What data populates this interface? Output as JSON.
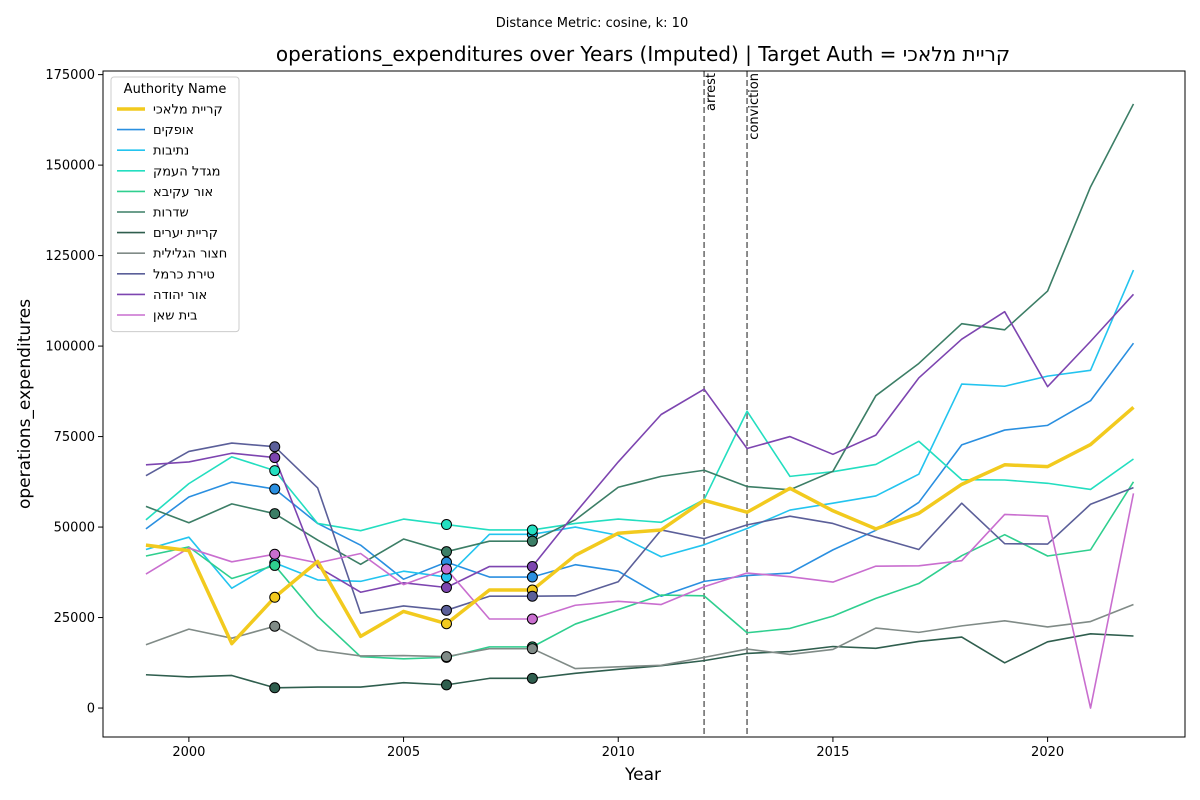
{
  "chart_data": {
    "type": "line",
    "suptitle": "Distance Metric: cosine, k: 10",
    "title": "operations_expenditures over Years (Imputed) | Target Auth = קריית מלאכי",
    "xlabel": "Year",
    "ylabel": "operations_expenditures",
    "xlim": [
      1998,
      2023.2
    ],
    "ylim": [
      -8000,
      176000
    ],
    "xticks": [
      2000,
      2005,
      2010,
      2015,
      2020
    ],
    "yticks": [
      0,
      25000,
      50000,
      75000,
      100000,
      125000,
      150000,
      175000
    ],
    "grid": false,
    "legend": {
      "title": "Authority Name",
      "placement": "top-left"
    },
    "x": [
      1999,
      2000,
      2001,
      2002,
      2003,
      2004,
      2005,
      2006,
      2007,
      2008,
      2009,
      2010,
      2011,
      2012,
      2013,
      2014,
      2015,
      2016,
      2017,
      2018,
      2019,
      2020,
      2021,
      2022
    ],
    "events": [
      {
        "label": "arrest",
        "x": 2012
      },
      {
        "label": "conviction",
        "x": 2013
      }
    ],
    "imputed_years": [
      2002,
      2006,
      2008
    ],
    "series": [
      {
        "name": "קריית מלאכי",
        "color": "#f2ca1e",
        "target": true,
        "values": [
          45000,
          43500,
          17800,
          30600,
          40500,
          19800,
          26700,
          23300,
          32600,
          32600,
          42200,
          48300,
          49200,
          57400,
          54100,
          60700,
          54500,
          49500,
          53800,
          61800,
          67200,
          66700,
          72800,
          83100
        ]
      },
      {
        "name": "אופקים",
        "color": "#2a8fe0",
        "values": [
          49500,
          58300,
          62400,
          60500,
          51000,
          45000,
          35600,
          40300,
          36200,
          36200,
          39600,
          37800,
          30900,
          35000,
          36600,
          37300,
          43700,
          49100,
          56800,
          72700,
          76800,
          78100,
          84900,
          100800
        ]
      },
      {
        "name": "נתיבות",
        "color": "#23c4ef",
        "values": [
          43800,
          47200,
          33100,
          40100,
          35400,
          35000,
          37800,
          36200,
          48000,
          48000,
          50000,
          47700,
          41800,
          45100,
          49600,
          54700,
          56600,
          58600,
          64600,
          89500,
          88900,
          91700,
          93300,
          121000
        ]
      },
      {
        "name": "מגדל העמק",
        "color": "#23dec0",
        "values": [
          52000,
          62000,
          69400,
          65600,
          51000,
          49000,
          52200,
          50700,
          49200,
          49200,
          51000,
          52200,
          51300,
          57600,
          82000,
          64000,
          65300,
          67300,
          73700,
          63100,
          63000,
          62100,
          60400,
          68800
        ]
      },
      {
        "name": "אור עקיבא",
        "color": "#2fcf8f",
        "values": [
          42000,
          44500,
          35800,
          39400,
          25300,
          14200,
          13600,
          14000,
          16900,
          16900,
          23200,
          27200,
          31200,
          31000,
          20800,
          22000,
          25400,
          30300,
          34400,
          42100,
          47900,
          42000,
          43700,
          62500
        ]
      },
      {
        "name": "שדרות",
        "color": "#3c7e66",
        "values": [
          55700,
          51200,
          56400,
          53700,
          46400,
          39700,
          46700,
          43200,
          46100,
          46100,
          52000,
          61000,
          64000,
          65700,
          61200,
          60300,
          65400,
          86300,
          95200,
          106200,
          104500,
          115200,
          144000,
          166900
        ]
      },
      {
        "name": "קריית יערים",
        "color": "#2f5e4e",
        "values": [
          9200,
          8600,
          9000,
          5600,
          5800,
          5800,
          7000,
          6400,
          8200,
          8200,
          9600,
          10700,
          11700,
          13100,
          15100,
          15600,
          17000,
          16500,
          18400,
          19600,
          12500,
          18300,
          20500,
          19900
        ]
      },
      {
        "name": "חצור הגלילית",
        "color": "#808b87",
        "values": [
          17500,
          21800,
          19300,
          22600,
          16000,
          14400,
          14500,
          14200,
          16400,
          16400,
          10900,
          11400,
          11800,
          14000,
          16300,
          14800,
          16200,
          22100,
          20900,
          22700,
          24100,
          22400,
          23900,
          28600
        ]
      },
      {
        "name": "טירת כרמל",
        "color": "#5b5f99",
        "values": [
          64200,
          70900,
          73200,
          72200,
          60800,
          26200,
          28200,
          27000,
          30900,
          30900,
          31000,
          34900,
          49200,
          46800,
          50600,
          53000,
          51000,
          47200,
          43800,
          56600,
          45400,
          45300,
          56300,
          60900
        ]
      },
      {
        "name": "אור יהודה",
        "color": "#7d45b0",
        "values": [
          67200,
          68000,
          70400,
          69200,
          39000,
          32000,
          34600,
          33300,
          39100,
          39100,
          53900,
          68000,
          81100,
          88100,
          71700,
          75000,
          70100,
          75400,
          91200,
          101900,
          109500,
          88800,
          101300,
          114300
        ]
      },
      {
        "name": "בית שאן",
        "color": "#c96ecf",
        "values": [
          37000,
          44200,
          40400,
          42500,
          40100,
          42700,
          34100,
          38400,
          24600,
          24600,
          28400,
          29500,
          28600,
          33500,
          37300,
          36300,
          34800,
          39200,
          39300,
          40700,
          53500,
          53000,
          0,
          59300
        ]
      }
    ]
  }
}
